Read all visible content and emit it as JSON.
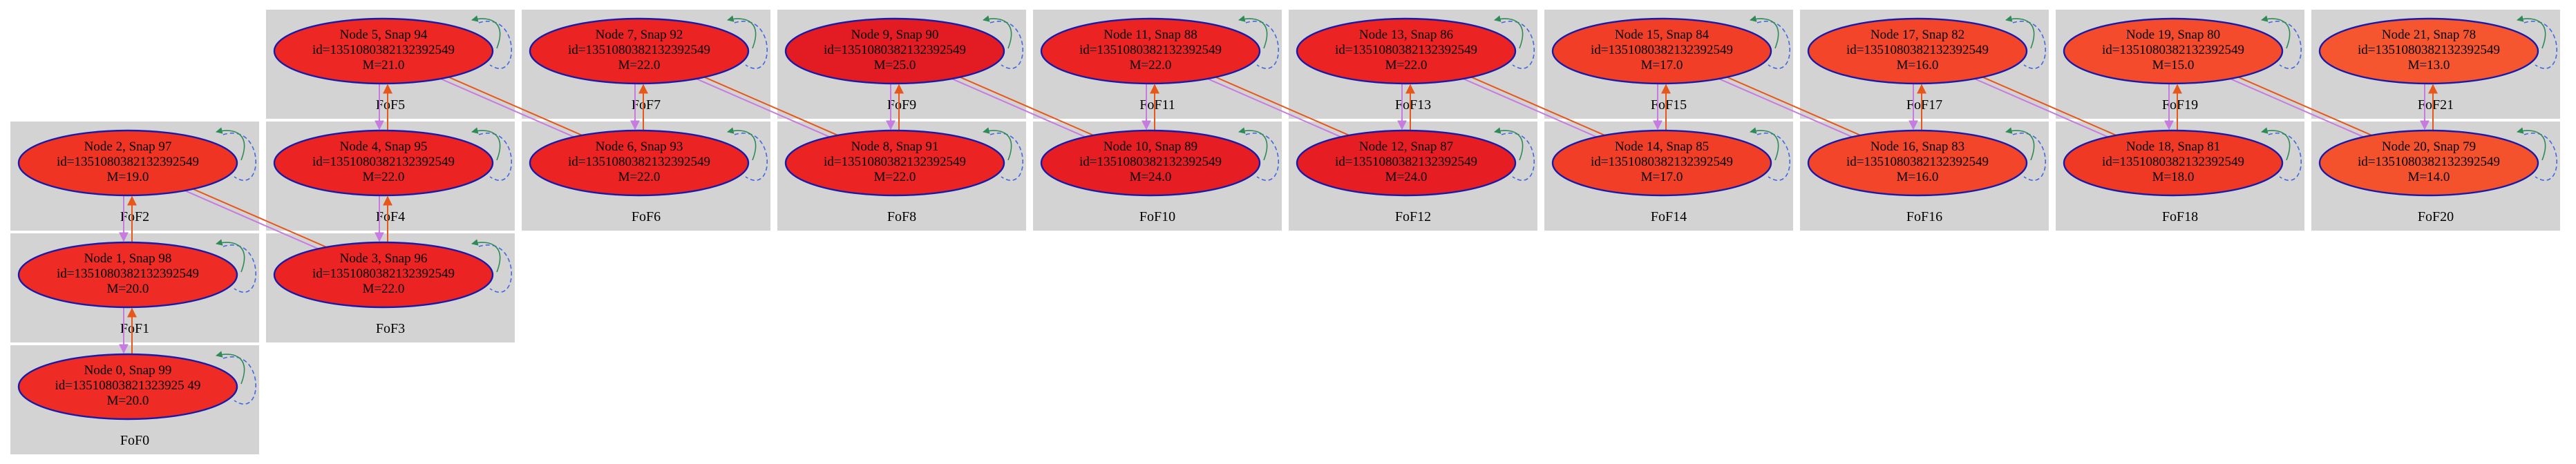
{
  "colors": {
    "cluster_bg": "#d3d3d3",
    "node_border": "#1a1aa8",
    "link_orange": "#e8561a",
    "link_violet": "#c77be0",
    "self_loop_green": "#2e8b57",
    "self_loop_blue": "#4169e1"
  },
  "clusters": [
    {
      "id": "FoF0",
      "label": "FoF0"
    },
    {
      "id": "FoF1",
      "label": "FoF1"
    },
    {
      "id": "FoF2",
      "label": "FoF2"
    },
    {
      "id": "FoF3",
      "label": "FoF3"
    },
    {
      "id": "FoF4",
      "label": "FoF4"
    },
    {
      "id": "FoF5",
      "label": "FoF5"
    },
    {
      "id": "FoF6",
      "label": "FoF6"
    },
    {
      "id": "FoF7",
      "label": "FoF7"
    },
    {
      "id": "FoF8",
      "label": "FoF8"
    },
    {
      "id": "FoF9",
      "label": "FoF9"
    },
    {
      "id": "FoF10",
      "label": "FoF10"
    },
    {
      "id": "FoF11",
      "label": "FoF11"
    },
    {
      "id": "FoF12",
      "label": "FoF12"
    },
    {
      "id": "FoF13",
      "label": "FoF13"
    },
    {
      "id": "FoF14",
      "label": "FoF14"
    },
    {
      "id": "FoF15",
      "label": "FoF15"
    },
    {
      "id": "FoF16",
      "label": "FoF16"
    },
    {
      "id": "FoF17",
      "label": "FoF17"
    },
    {
      "id": "FoF18",
      "label": "FoF18"
    },
    {
      "id": "FoF19",
      "label": "FoF19"
    },
    {
      "id": "FoF20",
      "label": "FoF20"
    },
    {
      "id": "FoF21",
      "label": "FoF21"
    }
  ],
  "nodes": [
    {
      "id": 0,
      "title": "Node 0, Snap 99",
      "idline": "id=13510803821323925 49",
      "mass": "M=20.0",
      "fill": "#ee2b24"
    },
    {
      "id": 1,
      "title": "Node 1, Snap 98",
      "idline": "id=1351080382132392549",
      "mass": "M=20.0",
      "fill": "#ee2b24"
    },
    {
      "id": 2,
      "title": "Node 2, Snap 97",
      "idline": "id=1351080382132392549",
      "mass": "M=19.0",
      "fill": "#ef3424"
    },
    {
      "id": 3,
      "title": "Node 3, Snap 96",
      "idline": "id=1351080382132392549",
      "mass": "M=22.0",
      "fill": "#eb2323"
    },
    {
      "id": 4,
      "title": "Node 4, Snap 95",
      "idline": "id=1351080382132392549",
      "mass": "M=22.0",
      "fill": "#eb2323"
    },
    {
      "id": 5,
      "title": "Node 5, Snap 94",
      "idline": "id=1351080382132392549",
      "mass": "M=21.0",
      "fill": "#ec2724"
    },
    {
      "id": 6,
      "title": "Node 6, Snap 93",
      "idline": "id=1351080382132392549",
      "mass": "M=22.0",
      "fill": "#eb2323"
    },
    {
      "id": 7,
      "title": "Node 7, Snap 92",
      "idline": "id=1351080382132392549",
      "mass": "M=22.0",
      "fill": "#eb2323"
    },
    {
      "id": 8,
      "title": "Node 8, Snap 91",
      "idline": "id=1351080382132392549",
      "mass": "M=22.0",
      "fill": "#eb2323"
    },
    {
      "id": 9,
      "title": "Node 9, Snap 90",
      "idline": "id=1351080382132392549",
      "mass": "M=25.0",
      "fill": "#e31b22"
    },
    {
      "id": 10,
      "title": "Node 10, Snap 89",
      "idline": "id=1351080382132392549",
      "mass": "M=24.0",
      "fill": "#e61d22"
    },
    {
      "id": 11,
      "title": "Node 11, Snap 88",
      "idline": "id=1351080382132392549",
      "mass": "M=22.0",
      "fill": "#eb2323"
    },
    {
      "id": 12,
      "title": "Node 12, Snap 87",
      "idline": "id=1351080382132392549",
      "mass": "M=24.0",
      "fill": "#e61d22"
    },
    {
      "id": 13,
      "title": "Node 13, Snap 86",
      "idline": "id=1351080382132392549",
      "mass": "M=22.0",
      "fill": "#eb2323"
    },
    {
      "id": 14,
      "title": "Node 14, Snap 85",
      "idline": "id=1351080382132392549",
      "mass": "M=17.0",
      "fill": "#f13f27"
    },
    {
      "id": 15,
      "title": "Node 15, Snap 84",
      "idline": "id=1351080382132392549",
      "mass": "M=17.0",
      "fill": "#f13f27"
    },
    {
      "id": 16,
      "title": "Node 16, Snap 83",
      "idline": "id=1351080382132392549",
      "mass": "M=16.0",
      "fill": "#f24529"
    },
    {
      "id": 17,
      "title": "Node 17, Snap 82",
      "idline": "id=1351080382132392549",
      "mass": "M=16.0",
      "fill": "#f24529"
    },
    {
      "id": 18,
      "title": "Node 18, Snap 81",
      "idline": "id=1351080382132392549",
      "mass": "M=18.0",
      "fill": "#f03925"
    },
    {
      "id": 19,
      "title": "Node 19, Snap 80",
      "idline": "id=1351080382132392549",
      "mass": "M=15.0",
      "fill": "#f34b2b"
    },
    {
      "id": 20,
      "title": "Node 20, Snap 79",
      "idline": "id=1351080382132392549",
      "mass": "M=14.0",
      "fill": "#f4512d"
    },
    {
      "id": 21,
      "title": "Node 21, Snap 78",
      "idline": "id=1351080382132392549",
      "mass": "M=13.0",
      "fill": "#f5562f"
    }
  ],
  "links": [
    {
      "from": 0,
      "to": 1,
      "kind": "same_fof"
    },
    {
      "from": 1,
      "to": 2,
      "kind": "same_fof"
    },
    {
      "from": 2,
      "to": 3,
      "kind": "cross"
    },
    {
      "from": 3,
      "to": 4,
      "kind": "same_fof"
    },
    {
      "from": 4,
      "to": 5,
      "kind": "same_fof"
    },
    {
      "from": 5,
      "to": 6,
      "kind": "cross"
    },
    {
      "from": 6,
      "to": 7,
      "kind": "same_fof"
    },
    {
      "from": 7,
      "to": 8,
      "kind": "cross"
    },
    {
      "from": 8,
      "to": 9,
      "kind": "same_fof"
    },
    {
      "from": 9,
      "to": 10,
      "kind": "cross"
    },
    {
      "from": 10,
      "to": 11,
      "kind": "same_fof"
    },
    {
      "from": 11,
      "to": 12,
      "kind": "cross"
    },
    {
      "from": 12,
      "to": 13,
      "kind": "same_fof"
    },
    {
      "from": 13,
      "to": 14,
      "kind": "cross"
    },
    {
      "from": 14,
      "to": 15,
      "kind": "same_fof"
    },
    {
      "from": 15,
      "to": 16,
      "kind": "cross"
    },
    {
      "from": 16,
      "to": 17,
      "kind": "same_fof"
    },
    {
      "from": 17,
      "to": 18,
      "kind": "cross"
    },
    {
      "from": 18,
      "to": 19,
      "kind": "same_fof"
    },
    {
      "from": 19,
      "to": 20,
      "kind": "cross"
    },
    {
      "from": 20,
      "to": 21,
      "kind": "same_fof"
    }
  ]
}
